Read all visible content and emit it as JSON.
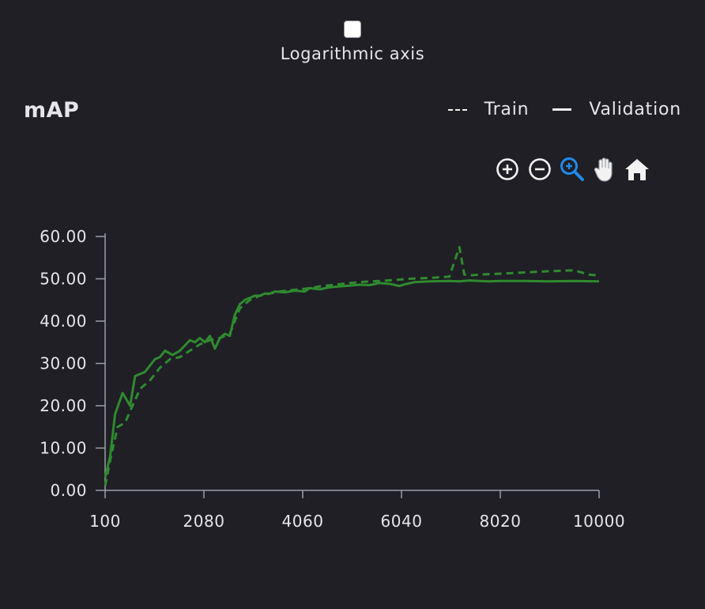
{
  "log_axis": {
    "label": "Logarithmic axis",
    "checked": false
  },
  "chart": {
    "title": "mAP"
  },
  "legend": {
    "train_label": "Train",
    "validation_label": "Validation"
  },
  "toolbar": {
    "icons": [
      "zoom-in-icon",
      "zoom-out-icon",
      "zoom-select-icon",
      "pan-hand-icon",
      "home-icon"
    ],
    "active_color": "#1f8bea"
  },
  "colors": {
    "series": "#2f8a2f",
    "axis": "#9aa0a6",
    "background": "#1f1f25"
  },
  "chart_data": {
    "type": "line",
    "title": "mAP",
    "xlabel": "",
    "ylabel": "",
    "xlim": [
      100,
      10000
    ],
    "ylim": [
      0,
      60
    ],
    "x_ticks": [
      "100",
      "2080",
      "4060",
      "6040",
      "8020",
      "10000"
    ],
    "y_ticks": [
      "0.00",
      "10.00",
      "20.00",
      "30.00",
      "40.00",
      "50.00",
      "60.00"
    ],
    "legend_position": "top-right",
    "grid": false,
    "series": [
      {
        "name": "Validation",
        "style": "solid",
        "x": [
          100,
          200,
          300,
          450,
          600,
          700,
          800,
          900,
          1100,
          1200,
          1300,
          1450,
          1600,
          1800,
          1900,
          2000,
          2100,
          2200,
          2300,
          2400,
          2500,
          2600,
          2700,
          2800,
          2900,
          3000,
          3100,
          3200,
          3300,
          3400,
          3500,
          3700,
          3900,
          4100,
          4200,
          4400,
          4600,
          4800,
          5000,
          5200,
          5400,
          5600,
          5800,
          6000,
          6100,
          6300,
          6600,
          7000,
          7200,
          7400,
          7600,
          7800,
          8000,
          8500,
          9000,
          9500,
          10000
        ],
        "y": [
          3,
          8,
          18,
          23,
          20,
          27,
          27.5,
          28,
          31,
          31.5,
          33,
          32,
          33,
          35.5,
          35,
          36,
          35,
          36.5,
          33.5,
          36,
          37,
          36.5,
          41.5,
          44,
          45,
          45.5,
          46,
          46,
          46.5,
          46.5,
          47,
          46.8,
          47.2,
          47,
          47.8,
          47.5,
          48,
          48.2,
          48.4,
          48.6,
          48.5,
          49,
          48.8,
          48.3,
          48.7,
          49.2,
          49.4,
          49.5,
          49.4,
          49.6,
          49.5,
          49.4,
          49.5,
          49.5,
          49.4,
          49.5,
          49.4
        ]
      },
      {
        "name": "Train",
        "style": "dashed",
        "x": [
          100,
          200,
          350,
          500,
          650,
          800,
          1000,
          1200,
          1400,
          1600,
          1800,
          2000,
          2200,
          2400,
          2600,
          2800,
          3000,
          3200,
          3400,
          3600,
          3800,
          4000,
          4200,
          4400,
          4700,
          5000,
          5300,
          5600,
          5900,
          6200,
          6600,
          7000,
          7200,
          7300,
          7400,
          7600,
          8000,
          8500,
          9000,
          9500,
          9800,
          10000
        ],
        "y": [
          1,
          7,
          15,
          16,
          20,
          24,
          26,
          29,
          31,
          31.5,
          33,
          34.5,
          35.5,
          36,
          37,
          43,
          45,
          46,
          46.5,
          47,
          47.3,
          47.5,
          47.8,
          48.2,
          48.6,
          49,
          49.3,
          49.5,
          49.7,
          50,
          50.2,
          50.5,
          57.5,
          51,
          50.8,
          51,
          51.2,
          51.5,
          51.8,
          52,
          51,
          50.8
        ]
      }
    ]
  }
}
